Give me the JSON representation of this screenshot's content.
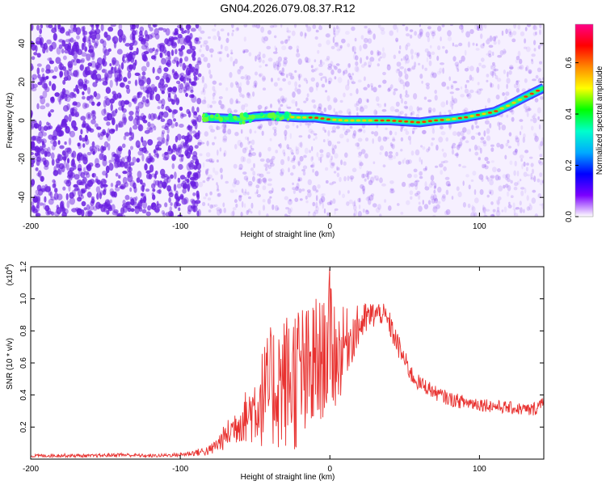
{
  "figure_title": "GN04.2026.079.08.37.R12",
  "colors": {
    "background": "#ffffff",
    "axis": "#000000",
    "snr_line": "#e8312f",
    "spectrogram_bg": "#f6f0ff",
    "spectrogram_noise": "#6a1fe0"
  },
  "chart_data": [
    {
      "type": "heatmap",
      "title": "GN04.2026.079.08.37.R12",
      "xlabel": "Height of straight line (km)",
      "ylabel": "Frequency (Hz)",
      "xlim": [
        -200,
        143
      ],
      "ylim": [
        -50,
        50
      ],
      "xticks": [
        -200,
        -100,
        0,
        100
      ],
      "xtick_labels": [
        "-200",
        "-100",
        "0",
        "100"
      ],
      "yticks": [
        -40,
        -20,
        0,
        20,
        40
      ],
      "ytick_labels": [
        "-40",
        "-20",
        "0",
        "20",
        "40"
      ],
      "colorbar": {
        "label": "Normalized spectral amplitude",
        "range": [
          0,
          0.75
        ],
        "ticks": [
          0,
          0.2,
          0.4,
          0.6
        ],
        "tick_labels": [
          "0.0",
          "0.2",
          "0.4",
          "0.6"
        ],
        "colormap": [
          "#ffffff",
          "#7b00ff",
          "#0000ff",
          "#00aaff",
          "#00ffcc",
          "#00ff00",
          "#ffff00",
          "#ff8800",
          "#ff0000",
          "#ff0088"
        ]
      },
      "noise_region_x": [
        -200,
        -87
      ],
      "signal_ridge": {
        "x": [
          -85,
          -70,
          -60,
          -50,
          -40,
          -30,
          -20,
          -10,
          0,
          10,
          20,
          30,
          40,
          50,
          60,
          70,
          80,
          90,
          100,
          110,
          120,
          130,
          143
        ],
        "frequency": [
          1.5,
          1,
          0.5,
          2,
          2.5,
          2,
          1.5,
          1.5,
          0.5,
          0,
          0,
          0,
          0,
          -0.5,
          -1,
          0,
          0.5,
          1.5,
          3,
          4.5,
          8,
          12,
          17
        ]
      }
    },
    {
      "type": "line",
      "xlabel": "Height of straight line (km)",
      "ylabel": "SNR (10 * v/v)",
      "y_scale_note": "(x10",
      "y_scale_exp": "4",
      "xlim": [
        -200,
        143
      ],
      "ylim": [
        0,
        1.2
      ],
      "xticks": [
        -200,
        -100,
        0,
        100
      ],
      "xtick_labels": [
        "-200",
        "-100",
        "0",
        "100"
      ],
      "yticks": [
        0.2,
        0.4,
        0.6,
        0.8,
        1.0,
        1.2
      ],
      "ytick_labels": [
        "0.2",
        "0.4",
        "0.6",
        "0.8",
        "1.0",
        "1.2"
      ],
      "series": [
        {
          "name": "SNR",
          "x": [
            -200,
            -180,
            -160,
            -140,
            -120,
            -100,
            -90,
            -80,
            -75,
            -70,
            -65,
            -60,
            -55,
            -50,
            -45,
            -40,
            -35,
            -30,
            -25,
            -20,
            -15,
            -10,
            -5,
            0,
            5,
            10,
            15,
            20,
            25,
            30,
            35,
            40,
            45,
            50,
            55,
            60,
            65,
            70,
            80,
            90,
            100,
            110,
            120,
            130,
            135,
            140,
            143
          ],
          "y": [
            0.02,
            0.025,
            0.02,
            0.03,
            0.02,
            0.03,
            0.04,
            0.06,
            0.1,
            0.15,
            0.2,
            0.25,
            0.3,
            0.35,
            0.38,
            0.4,
            0.5,
            0.55,
            0.6,
            0.5,
            0.6,
            0.7,
            0.65,
            0.75,
            0.6,
            0.8,
            0.82,
            0.86,
            0.9,
            0.92,
            0.93,
            0.85,
            0.72,
            0.62,
            0.52,
            0.48,
            0.45,
            0.42,
            0.38,
            0.36,
            0.35,
            0.34,
            0.33,
            0.32,
            0.31,
            0.34,
            0.4
          ],
          "envelope_upper": [
            0.03,
            0.035,
            0.03,
            0.04,
            0.03,
            0.04,
            0.06,
            0.09,
            0.15,
            0.22,
            0.3,
            0.38,
            0.45,
            0.58,
            0.7,
            0.82,
            0.9,
            0.92,
            0.98,
            1.02,
            0.95,
            1.05,
            0.98,
            1.2,
            0.95,
            0.95,
            0.94,
            0.97,
            0.98,
            0.99,
            0.98,
            0.92,
            0.8,
            0.68,
            0.58,
            0.52,
            0.5,
            0.46,
            0.42,
            0.4,
            0.39,
            0.37,
            0.36,
            0.35,
            0.35,
            0.38,
            0.46
          ],
          "envelope_lower": [
            0.01,
            0.012,
            0.01,
            0.015,
            0.01,
            0.015,
            0.02,
            0.02,
            0.04,
            0.06,
            0.08,
            0.1,
            0.1,
            0.08,
            0.07,
            0.06,
            0.05,
            0.05,
            0.04,
            0.03,
            0.05,
            0.1,
            0.25,
            0.3,
            0.3,
            0.5,
            0.6,
            0.7,
            0.78,
            0.82,
            0.84,
            0.76,
            0.64,
            0.55,
            0.46,
            0.42,
            0.4,
            0.37,
            0.33,
            0.31,
            0.3,
            0.29,
            0.28,
            0.27,
            0.26,
            0.29,
            0.34
          ]
        }
      ]
    }
  ]
}
